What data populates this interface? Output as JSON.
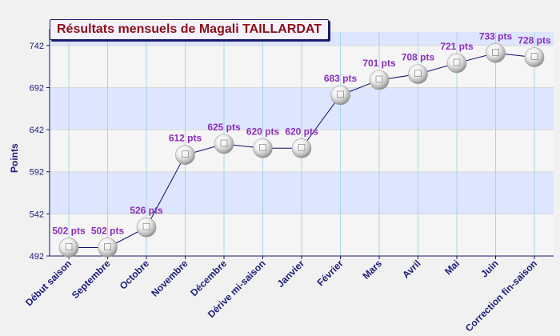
{
  "chart_data": {
    "type": "line",
    "title": "Résultats mensuels de Magali TAILLARDAT",
    "xlabel": "",
    "ylabel": "Points",
    "ylim": [
      492,
      758
    ],
    "yticks": [
      492,
      542,
      592,
      642,
      692,
      742
    ],
    "grid": true,
    "categories": [
      "Début saison",
      "Septembre",
      "Octobre",
      "Novembre",
      "Décembre",
      "Dérive mi-saison",
      "Janvier",
      "Février",
      "Mars",
      "Avril",
      "Mai",
      "Juin",
      "Correction fin-saison"
    ],
    "series": [
      {
        "values": [
          502,
          502,
          526,
          612,
          625,
          620,
          620,
          683,
          701,
          708,
          721,
          733,
          728
        ],
        "labels": [
          "502 pts",
          "502 pts",
          "526 pts",
          "612 pts",
          "625 pts",
          "620 pts",
          "620 pts",
          "683 pts",
          "701 pts",
          "708 pts",
          "721 pts",
          "733 pts",
          "728 pts"
        ]
      }
    ],
    "colors": {
      "background": "#f1f1f1",
      "plot_band_light": "#f5f5f5",
      "plot_band_blue": "#dde6fe",
      "vertical_grid": "#a9d4e8",
      "axis": "#1b1a6e",
      "line": "#0b0b6a",
      "point_label": "#8b2dbb",
      "tick_label": "#1c1c7a",
      "title_text": "#8b0f16"
    }
  }
}
